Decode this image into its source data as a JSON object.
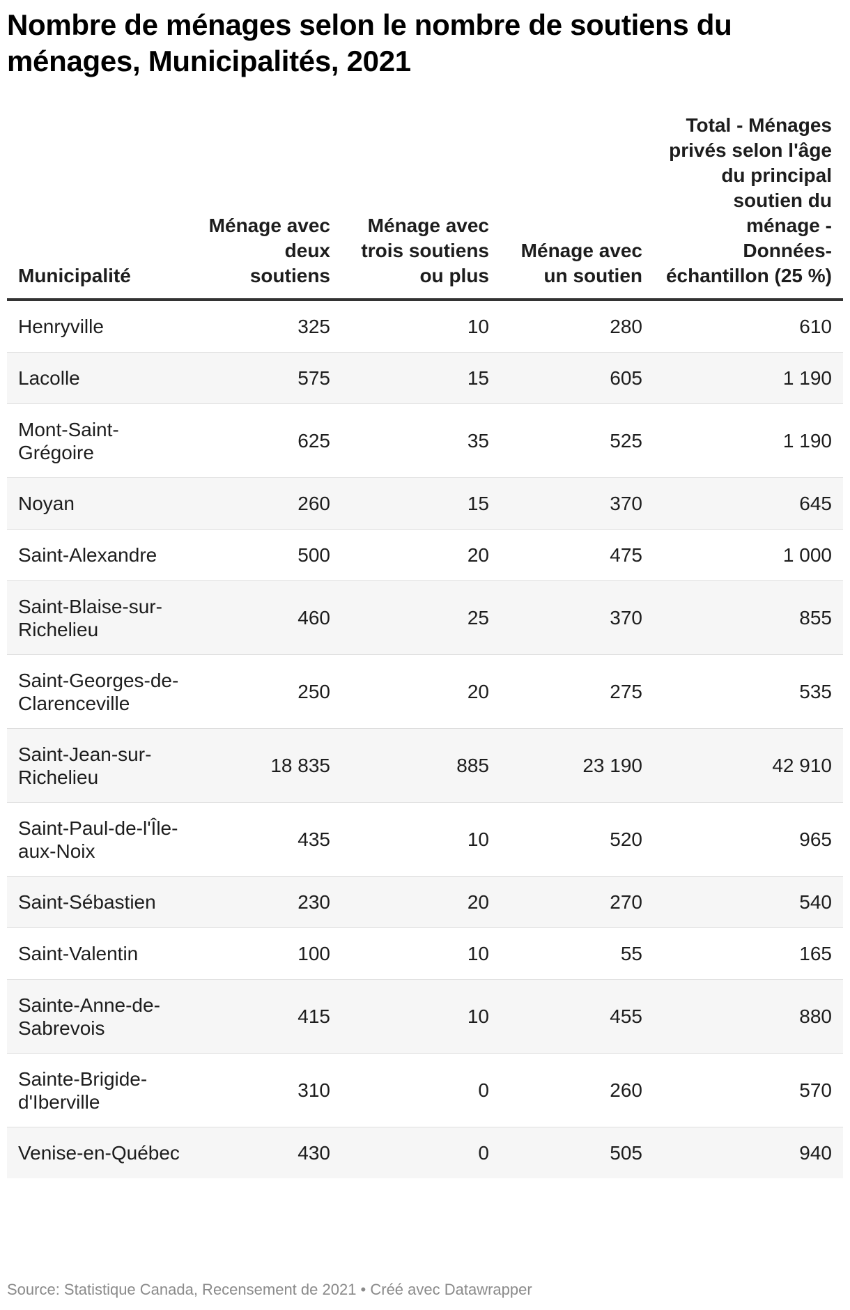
{
  "title": "Nombre de ménages selon le nombre de soutiens du ménages, Municipalités, 2021",
  "footer": "Source: Statistique Canada, Recensement de 2021 • Créé avec Datawrapper",
  "chart_data": {
    "type": "table",
    "title": "Nombre de ménages selon le nombre de soutiens du ménages, Municipalités, 2021",
    "columns": [
      "Municipalité",
      "Ménage avec deux soutiens",
      "Ménage avec trois soutiens ou plus",
      "Ménage avec un soutien",
      "Total - Ménages privés selon l'âge du principal soutien du ménage - Données-échantillon (25 %)"
    ],
    "rows": [
      [
        "Henryville",
        "325",
        "10",
        "280",
        "610"
      ],
      [
        "Lacolle",
        "575",
        "15",
        "605",
        "1 190"
      ],
      [
        "Mont-Saint-Grégoire",
        "625",
        "35",
        "525",
        "1 190"
      ],
      [
        "Noyan",
        "260",
        "15",
        "370",
        "645"
      ],
      [
        "Saint-Alexandre",
        "500",
        "20",
        "475",
        "1 000"
      ],
      [
        "Saint-Blaise-sur-Richelieu",
        "460",
        "25",
        "370",
        "855"
      ],
      [
        "Saint-Georges-de-Clarenceville",
        "250",
        "20",
        "275",
        "535"
      ],
      [
        "Saint-Jean-sur-Richelieu",
        "18 835",
        "885",
        "23 190",
        "42 910"
      ],
      [
        "Saint-Paul-de-l'Île-aux-Noix",
        "435",
        "10",
        "520",
        "965"
      ],
      [
        "Saint-Sébastien",
        "230",
        "20",
        "270",
        "540"
      ],
      [
        "Saint-Valentin",
        "100",
        "10",
        "55",
        "165"
      ],
      [
        "Sainte-Anne-de-Sabrevois",
        "415",
        "10",
        "455",
        "880"
      ],
      [
        "Sainte-Brigide-d'Iberville",
        "310",
        "0",
        "260",
        "570"
      ],
      [
        "Venise-en-Québec",
        "430",
        "0",
        "505",
        "940"
      ]
    ]
  }
}
